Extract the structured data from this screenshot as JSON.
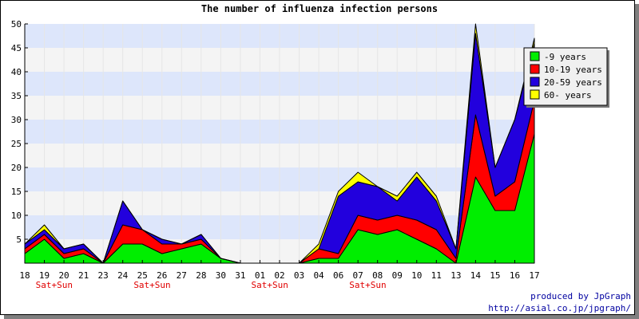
{
  "chart_data": {
    "type": "area",
    "stacked": true,
    "title": "The number of influenza infection persons",
    "xlabel": "",
    "ylabel": "",
    "ylim": [
      0,
      50
    ],
    "yticks": [
      5,
      10,
      15,
      20,
      25,
      30,
      35,
      40,
      45,
      50
    ],
    "grid": true,
    "legend_position": "top-right",
    "categories": [
      "18",
      "19",
      "20",
      "21",
      "23",
      "24",
      "25",
      "26",
      "27",
      "28",
      "30",
      "31",
      "01",
      "02",
      "03",
      "04",
      "06",
      "07",
      "08",
      "09",
      "10",
      "11",
      "13",
      "14",
      "15",
      "16",
      "17"
    ],
    "weekend_labels": [
      {
        "after_index": 1,
        "label": "Sat+Sun"
      },
      {
        "after_index": 6,
        "label": "Sat+Sun"
      },
      {
        "after_index": 12,
        "label": "Sat+Sun"
      },
      {
        "after_index": 17,
        "label": "Sat+Sun"
      }
    ],
    "series": [
      {
        "name": "-9 years",
        "color": "#00ee00",
        "values": [
          2,
          5,
          1,
          2,
          0,
          4,
          4,
          2,
          3,
          4,
          1,
          0,
          0,
          0,
          0,
          1,
          1,
          7,
          6,
          7,
          5,
          3,
          0,
          18,
          11,
          11,
          27
        ]
      },
      {
        "name": "10-19 years",
        "color": "#ff0000",
        "values": [
          1,
          1,
          1,
          1,
          0,
          4,
          3,
          2,
          1,
          1,
          0,
          0,
          0,
          0,
          0,
          2,
          1,
          3,
          3,
          3,
          4,
          4,
          1,
          13,
          3,
          6,
          7
        ]
      },
      {
        "name": "20-59 years",
        "color": "#2200dd",
        "values": [
          1,
          1,
          1,
          1,
          0,
          5,
          0,
          1,
          0,
          1,
          0,
          0,
          0,
          0,
          0,
          0,
          12,
          7,
          7,
          3,
          9,
          6,
          2,
          17,
          6,
          13,
          12
        ]
      },
      {
        "name": "60- years",
        "color": "#ffff00",
        "values": [
          0,
          1,
          0,
          0,
          0,
          0,
          0,
          0,
          0,
          0,
          0,
          0,
          0,
          0,
          0,
          1,
          1,
          2,
          0,
          1,
          1,
          1,
          0,
          2,
          0,
          0,
          1
        ]
      }
    ]
  },
  "credit": {
    "line1": "produced by JpGraph",
    "line2": "http://asial.co.jp/jpgraph/"
  }
}
